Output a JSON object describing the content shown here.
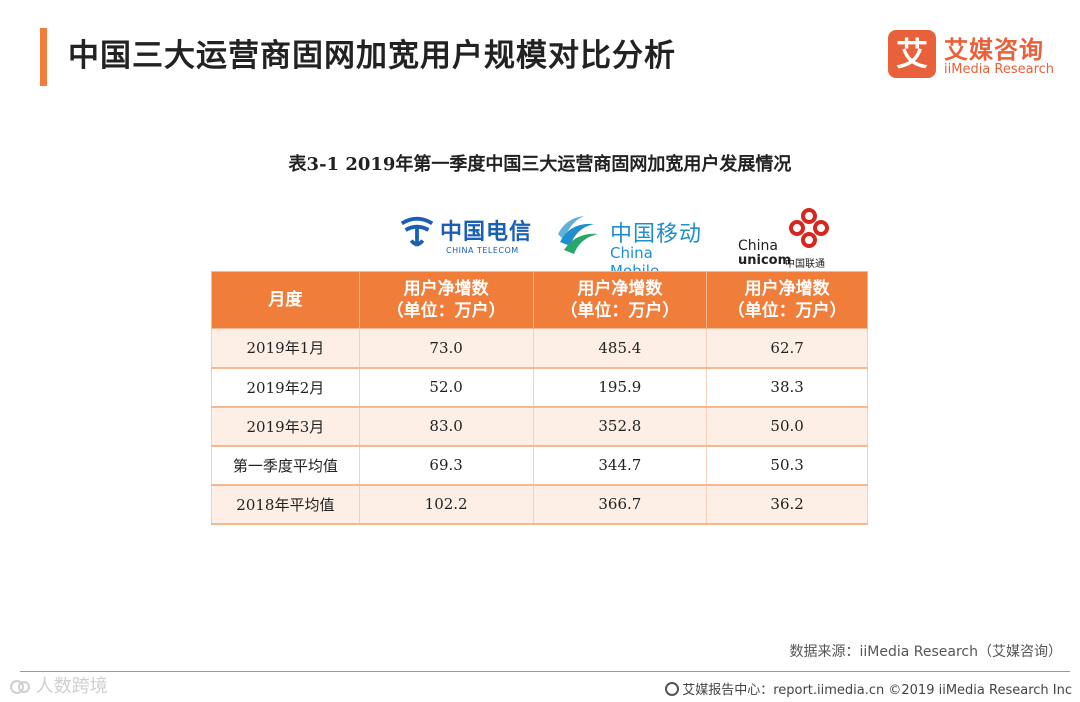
{
  "page": {
    "title": "中国三大运营商固网加宽用户规模对比分析",
    "accent_color": "#f07d3a"
  },
  "brand": {
    "mark": "艾",
    "name_cn": "艾媒咨询",
    "name_en": "iiMedia Research",
    "color": "#e8613a"
  },
  "table": {
    "caption": "表3-1 2019年第一季度中国三大运营商固网加宽用户发展情况",
    "logos": {
      "telecom_cn": "中国电信",
      "telecom_en": "CHINA TELECOM",
      "mobile_cn": "中国移动",
      "mobile_en": "China Mobile",
      "unicom_en1": "China",
      "unicom_en2": "unicom",
      "unicom_cn": "中国联通"
    },
    "headers": {
      "month": "月度",
      "net_add": "用户净增数",
      "unit": "（单位：万户）"
    },
    "rows": [
      {
        "month": "2019年1月",
        "telecom": "73.0",
        "mobile": "485.4",
        "unicom": "62.7"
      },
      {
        "month": "2019年2月",
        "telecom": "52.0",
        "mobile": "195.9",
        "unicom": "38.3"
      },
      {
        "month": "2019年3月",
        "telecom": "83.0",
        "mobile": "352.8",
        "unicom": "50.0"
      },
      {
        "month": "第一季度平均值",
        "telecom": "69.3",
        "mobile": "344.7",
        "unicom": "50.3"
      },
      {
        "month": "2018年平均值",
        "telecom": "102.2",
        "mobile": "366.7",
        "unicom": "36.2"
      }
    ]
  },
  "source": "数据来源：iiMedia Research（艾媒咨询）",
  "watermark": "人数跨境",
  "footer": "艾媒报告中心：report.iimedia.cn ©2019 iiMedia Research Inc"
}
